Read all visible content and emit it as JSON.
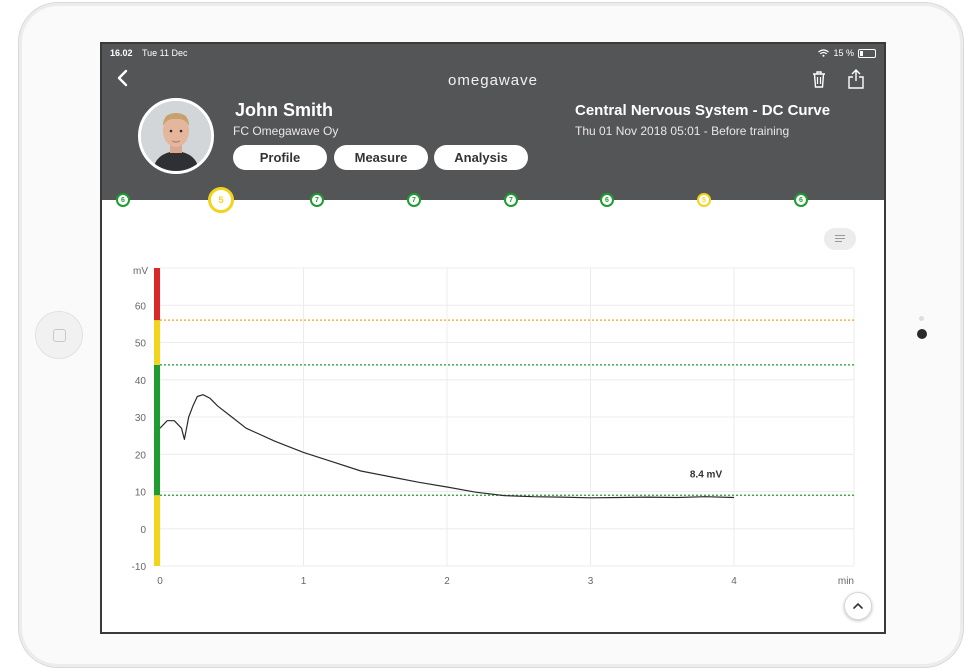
{
  "status_bar": {
    "time": "16.02",
    "date": "Tue 11 Dec",
    "battery": "15 %"
  },
  "app": {
    "logo": "omegawave"
  },
  "athlete": {
    "name": "John Smith",
    "team": "FC Omegawave Oy"
  },
  "tabs": [
    {
      "label": "Profile"
    },
    {
      "label": "Measure"
    },
    {
      "label": "Analysis"
    }
  ],
  "panel": {
    "title": "Central Nervous System - DC Curve",
    "subtitle": "Thu 01 Nov 2018 05:01 - Before training"
  },
  "timeline": [
    {
      "value": "6",
      "color": "green"
    },
    {
      "value": "5",
      "color": "yellow",
      "selected": true
    },
    {
      "value": "7",
      "color": "green"
    },
    {
      "value": "7",
      "color": "green"
    },
    {
      "value": "7",
      "color": "green"
    },
    {
      "value": "6",
      "color": "green"
    },
    {
      "value": "5",
      "color": "yellow"
    },
    {
      "value": "6",
      "color": "green"
    }
  ],
  "icons": [
    "back-icon",
    "wifi-icon",
    "battery-icon",
    "trash-icon",
    "share-icon",
    "menu-icon",
    "chevron-up-icon"
  ],
  "colors": {
    "header": "#545556",
    "green": "#1e9b32",
    "yellow": "#f3d41c",
    "red": "#d9282a",
    "orange_line": "#f0a323"
  },
  "chart_data": {
    "type": "line",
    "ylabel": "mV",
    "xlabel": "min",
    "ylim": [
      -10,
      70
    ],
    "xlim": [
      0,
      5
    ],
    "yticks": [
      "-10",
      "0",
      "10",
      "20",
      "30",
      "40",
      "50",
      "60"
    ],
    "xticks": [
      "0",
      "1",
      "2",
      "3",
      "4"
    ],
    "grid": true,
    "zones": [
      {
        "color": "yellow",
        "from": -10,
        "to": 9
      },
      {
        "color": "green",
        "from": 9,
        "to": 44
      },
      {
        "color": "yellow",
        "from": 44,
        "to": 56
      },
      {
        "color": "red",
        "from": 56,
        "to": 70
      }
    ],
    "reference_lines": [
      {
        "value": 56,
        "color": "orange"
      },
      {
        "value": 44,
        "color": "green"
      },
      {
        "value": 9,
        "color": "green"
      }
    ],
    "annotation": "8.4 mV",
    "series": [
      {
        "x": [
          0,
          0.05,
          0.1,
          0.15,
          0.17,
          0.2,
          0.23,
          0.26,
          0.3,
          0.35,
          0.4,
          0.5,
          0.6,
          0.8,
          1.0,
          1.2,
          1.4,
          1.6,
          1.8,
          2.0,
          2.2,
          2.4,
          2.6,
          2.8,
          3.0,
          3.2,
          3.4,
          3.6,
          3.8,
          4.0
        ],
        "y": [
          27,
          29,
          29,
          27,
          24,
          30,
          33,
          35.5,
          36,
          35,
          33,
          30,
          27,
          23.5,
          20.5,
          18,
          15.5,
          14,
          12.5,
          11.2,
          9.8,
          8.9,
          8.6,
          8.5,
          8.3,
          8.4,
          8.5,
          8.4,
          8.6,
          8.4
        ]
      }
    ]
  }
}
